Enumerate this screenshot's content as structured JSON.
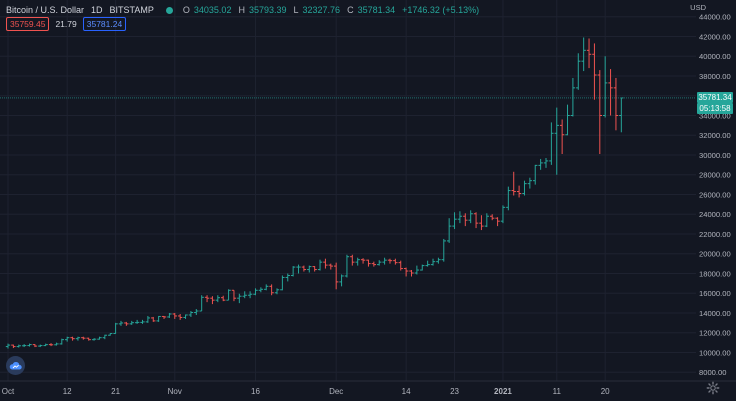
{
  "header": {
    "symbol": "Bitcoin / U.S. Dollar",
    "interval": "1D",
    "exchange": "BITSTAMP",
    "open_label": "O",
    "open": "34035.02",
    "high_label": "H",
    "high": "35793.39",
    "low_label": "L",
    "low": "32327.76",
    "close_label": "C",
    "close": "35781.34",
    "change": "+1746.32 (+5.13%)",
    "status_color": "#26a69a"
  },
  "quote": {
    "bid": "35759.45",
    "spread": "21.79",
    "ask": "35781.24"
  },
  "axis": {
    "currency": "USD"
  },
  "last_price": {
    "value": "35781.34",
    "countdown": "05:13:58"
  },
  "colors": {
    "up": "#26a69a",
    "down": "#ef5350",
    "background": "#131722",
    "grid": "#1e2230"
  },
  "icons": {
    "logo": "tradingview-cloud-icon",
    "settings": "gear-icon"
  },
  "chart_data": {
    "type": "ohlc",
    "y_range": [
      7000,
      45000
    ],
    "y_ticks": [
      8000,
      10000,
      12000,
      14000,
      16000,
      18000,
      20000,
      22000,
      24000,
      26000,
      28000,
      30000,
      32000,
      34000,
      36000,
      38000,
      40000,
      42000,
      44000
    ],
    "y_tick_labels": [
      "8000.00",
      "10000.00",
      "12000.00",
      "14000.00",
      "16000.00",
      "18000.00",
      "20000.00",
      "22000.00",
      "24000.00",
      "26000.00",
      "28000.00",
      "30000.00",
      "32000.00",
      "34000.00",
      "36000.00",
      "38000.00",
      "40000.00",
      "42000.00",
      "44000.00"
    ],
    "x_start": "2020-10-01",
    "x_end": "2021-01-22",
    "x_ticks": [
      {
        "date": "2020-10-01",
        "label": "Oct"
      },
      {
        "date": "2020-10-12",
        "label": "12"
      },
      {
        "date": "2020-10-21",
        "label": "21"
      },
      {
        "date": "2020-11-01",
        "label": "Nov"
      },
      {
        "date": "2020-11-16",
        "label": "16"
      },
      {
        "date": "2020-12-01",
        "label": "Dec"
      },
      {
        "date": "2020-12-14",
        "label": "14"
      },
      {
        "date": "2020-12-23",
        "label": "23"
      },
      {
        "date": "2021-01-01",
        "label": "2021"
      },
      {
        "date": "2021-01-11",
        "label": "11"
      },
      {
        "date": "2021-01-20",
        "label": "20"
      }
    ],
    "closes": [
      10750,
      10600,
      10680,
      10700,
      10800,
      10650,
      10700,
      10800,
      10780,
      10870,
      11300,
      11500,
      11400,
      11500,
      11450,
      11300,
      11350,
      11500,
      11750,
      11920,
      12900,
      12990,
      12900,
      13020,
      13050,
      13100,
      13500,
      13200,
      13650,
      13600,
      13900,
      13700,
      13550,
      13800,
      14050,
      14200,
      15590,
      15500,
      15300,
      15550,
      15300,
      16300,
      15500,
      15700,
      15800,
      15900,
      16300,
      16400,
      16700,
      16050,
      16350,
      17600,
      17800,
      18650,
      18650,
      18400,
      18700,
      18400,
      19150,
      18850,
      18750,
      17150,
      17750,
      19700,
      19150,
      19400,
      19350,
      19000,
      18900,
      19150,
      19350,
      19300,
      19100,
      18500,
      18250,
      18050,
      18350,
      18800,
      18900,
      19200,
      19400,
      21300,
      22800,
      23500,
      23800,
      23400,
      24050,
      23100,
      22800,
      23800,
      23600,
      23300,
      24700,
      26400,
      26300,
      26100,
      27100,
      27400,
      28950,
      29200,
      29400,
      32200,
      33000,
      32050,
      34000,
      36800,
      39500,
      40600,
      40200,
      38100,
      34000,
      37300,
      36800,
      34000,
      35781
    ],
    "highs": [
      10900,
      10800,
      10800,
      10850,
      10900,
      10850,
      10800,
      10900,
      10950,
      11000,
      11400,
      11600,
      11600,
      11600,
      11600,
      11500,
      11450,
      11600,
      11800,
      11950,
      13000,
      13200,
      13100,
      13200,
      13300,
      13300,
      13700,
      13600,
      13700,
      13700,
      14000,
      14000,
      13900,
      13850,
      14200,
      14400,
      15800,
      15800,
      15700,
      15800,
      15750,
      16400,
      16300,
      15950,
      16200,
      16200,
      16500,
      16600,
      16900,
      16900,
      16500,
      17800,
      18000,
      18750,
      18900,
      18800,
      18800,
      18750,
      19400,
      19500,
      19000,
      19100,
      17900,
      19900,
      19900,
      19600,
      19550,
      19400,
      19200,
      19350,
      19600,
      19500,
      19500,
      19300,
      18600,
      18350,
      18800,
      18900,
      19300,
      19500,
      19600,
      21500,
      23600,
      24200,
      24300,
      24100,
      24400,
      24200,
      23900,
      24100,
      24000,
      23700,
      24900,
      26800,
      28300,
      26900,
      27400,
      27700,
      29000,
      29600,
      29700,
      33300,
      34800,
      33600,
      35100,
      37800,
      40300,
      41900,
      41800,
      41300,
      38600,
      40000,
      38700,
      37800,
      35800
    ],
    "lows": [
      10400,
      10450,
      10500,
      10550,
      10600,
      10550,
      10550,
      10650,
      10650,
      10700,
      10800,
      11100,
      11200,
      11200,
      11300,
      11200,
      11200,
      11300,
      11350,
      11700,
      11900,
      12700,
      12700,
      12800,
      12900,
      12900,
      13000,
      13100,
      13100,
      13400,
      13500,
      13400,
      13300,
      13400,
      13600,
      13800,
      14200,
      15100,
      14900,
      15100,
      15200,
      15300,
      15200,
      15000,
      15500,
      15500,
      15800,
      16100,
      16300,
      15800,
      15900,
      16300,
      17200,
      17700,
      18000,
      18200,
      18100,
      18200,
      18300,
      18500,
      18400,
      16400,
      16700,
      17600,
      18800,
      18800,
      19000,
      18700,
      18700,
      18800,
      18900,
      19000,
      18900,
      18300,
      17700,
      17700,
      17900,
      18300,
      18700,
      18800,
      19000,
      19200,
      21100,
      22500,
      23100,
      22800,
      23100,
      22600,
      22400,
      22700,
      23400,
      22800,
      23100,
      24400,
      25900,
      25700,
      25900,
      26600,
      27000,
      28500,
      28700,
      29000,
      28000,
      30100,
      32000,
      33900,
      36600,
      38500,
      38800,
      35600,
      30100,
      33800,
      34000,
      32500,
      32300
    ]
  }
}
